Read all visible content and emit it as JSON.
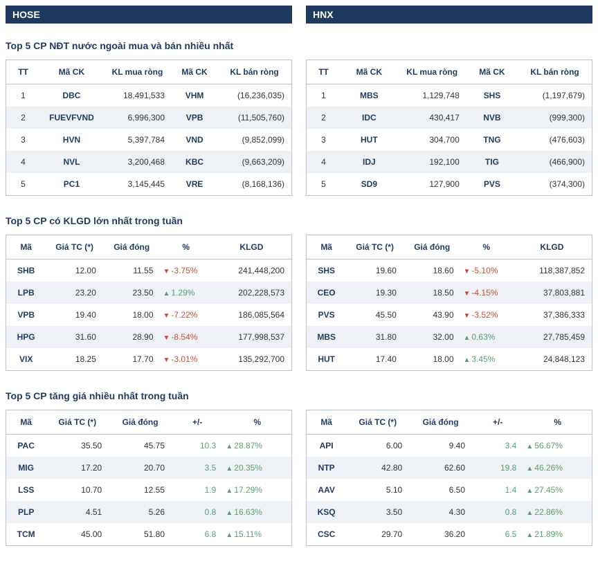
{
  "colors": {
    "header_bg": "#1f3a5f",
    "header_fg": "#ffffff",
    "border": "#b8c4d4",
    "row_alt": "#eef2f7",
    "navy": "#1f3a5f",
    "up": "#5a9e6f",
    "down": "#c84b3a"
  },
  "hose_label": "HOSE",
  "hnx_label": "HNX",
  "section1_title": "Top 5 CP NĐT nước ngoài mua và bán nhiều nhất",
  "section2_title": "Top 5 CP có KLGD lớn nhất trong tuần",
  "section3_title": "Top 5 CP tăng giá nhiều nhất trong tuần",
  "t1_headers": {
    "tt": "TT",
    "ma1": "Mã CK",
    "buy": "KL mua ròng",
    "ma2": "Mã CK",
    "sell": "KL bán ròng"
  },
  "t2_headers": {
    "ma": "Mã",
    "ref": "Giá TC (*)",
    "close": "Giá đóng",
    "pct": "%",
    "vol": "KLGD"
  },
  "t3_headers": {
    "ma": "Mã",
    "ref": "Giá TC (*)",
    "close": "Giá đóng",
    "chg": "+/-",
    "pct": "%"
  },
  "hose": {
    "foreign": [
      {
        "tt": "1",
        "buy_code": "DBC",
        "buy_vol": "18,491,533",
        "sell_code": "VHM",
        "sell_vol": "(16,236,035)"
      },
      {
        "tt": "2",
        "buy_code": "FUEVFVND",
        "buy_vol": "6,996,300",
        "sell_code": "VPB",
        "sell_vol": "(11,505,760)"
      },
      {
        "tt": "3",
        "buy_code": "HVN",
        "buy_vol": "5,397,784",
        "sell_code": "VND",
        "sell_vol": "(9,852,099)"
      },
      {
        "tt": "4",
        "buy_code": "NVL",
        "buy_vol": "3,200,468",
        "sell_code": "KBC",
        "sell_vol": "(9,663,209)"
      },
      {
        "tt": "5",
        "buy_code": "PC1",
        "buy_vol": "3,145,445",
        "sell_code": "VRE",
        "sell_vol": "(8,168,136)"
      }
    ],
    "volume": [
      {
        "code": "SHB",
        "ref": "12.00",
        "close": "11.55",
        "dir": "down",
        "pct": "-3.75%",
        "vol": "241,448,200"
      },
      {
        "code": "LPB",
        "ref": "23.20",
        "close": "23.50",
        "dir": "up",
        "pct": "1.29%",
        "vol": "202,228,573"
      },
      {
        "code": "VPB",
        "ref": "19.40",
        "close": "18.00",
        "dir": "down",
        "pct": "-7.22%",
        "vol": "186,085,564"
      },
      {
        "code": "HPG",
        "ref": "31.60",
        "close": "28.90",
        "dir": "down",
        "pct": "-8.54%",
        "vol": "177,998,537"
      },
      {
        "code": "VIX",
        "ref": "18.25",
        "close": "17.70",
        "dir": "down",
        "pct": "-3.01%",
        "vol": "135,292,700"
      }
    ],
    "gainers": [
      {
        "code": "PAC",
        "ref": "35.50",
        "close": "45.75",
        "chg": "10.3",
        "dir": "up",
        "pct": "28.87%"
      },
      {
        "code": "MIG",
        "ref": "17.20",
        "close": "20.70",
        "chg": "3.5",
        "dir": "up",
        "pct": "20.35%"
      },
      {
        "code": "LSS",
        "ref": "10.70",
        "close": "12.55",
        "chg": "1.9",
        "dir": "up",
        "pct": "17.29%"
      },
      {
        "code": "PLP",
        "ref": "4.51",
        "close": "5.26",
        "chg": "0.8",
        "dir": "up",
        "pct": "16.63%"
      },
      {
        "code": "TCM",
        "ref": "45.00",
        "close": "51.80",
        "chg": "6.8",
        "dir": "up",
        "pct": "15.11%"
      }
    ]
  },
  "hnx": {
    "foreign": [
      {
        "tt": "1",
        "buy_code": "MBS",
        "buy_vol": "1,129,748",
        "sell_code": "SHS",
        "sell_vol": "(1,197,679)"
      },
      {
        "tt": "2",
        "buy_code": "IDC",
        "buy_vol": "430,417",
        "sell_code": "NVB",
        "sell_vol": "(999,300)"
      },
      {
        "tt": "3",
        "buy_code": "HUT",
        "buy_vol": "304,700",
        "sell_code": "TNG",
        "sell_vol": "(476,603)"
      },
      {
        "tt": "4",
        "buy_code": "IDJ",
        "buy_vol": "192,100",
        "sell_code": "TIG",
        "sell_vol": "(466,900)"
      },
      {
        "tt": "5",
        "buy_code": "SD9",
        "buy_vol": "127,900",
        "sell_code": "PVS",
        "sell_vol": "(374,300)"
      }
    ],
    "volume": [
      {
        "code": "SHS",
        "ref": "19.60",
        "close": "18.60",
        "dir": "down",
        "pct": "-5.10%",
        "vol": "118,387,852"
      },
      {
        "code": "CEO",
        "ref": "19.30",
        "close": "18.50",
        "dir": "down",
        "pct": "-4.15%",
        "vol": "37,803,881"
      },
      {
        "code": "PVS",
        "ref": "45.50",
        "close": "43.90",
        "dir": "down",
        "pct": "-3.52%",
        "vol": "37,386,333"
      },
      {
        "code": "MBS",
        "ref": "31.80",
        "close": "32.00",
        "dir": "up",
        "pct": "0.63%",
        "vol": "27,785,459"
      },
      {
        "code": "HUT",
        "ref": "17.40",
        "close": "18.00",
        "dir": "up",
        "pct": "3.45%",
        "vol": "24,848,123"
      }
    ],
    "gainers": [
      {
        "code": "API",
        "ref": "6.00",
        "close": "9.40",
        "chg": "3.4",
        "dir": "up",
        "pct": "56.67%"
      },
      {
        "code": "NTP",
        "ref": "42.80",
        "close": "62.60",
        "chg": "19.8",
        "dir": "up",
        "pct": "46.26%"
      },
      {
        "code": "AAV",
        "ref": "5.10",
        "close": "6.50",
        "chg": "1.4",
        "dir": "up",
        "pct": "27.45%"
      },
      {
        "code": "KSQ",
        "ref": "3.50",
        "close": "4.30",
        "chg": "0.8",
        "dir": "up",
        "pct": "22.86%"
      },
      {
        "code": "CSC",
        "ref": "29.70",
        "close": "36.20",
        "chg": "6.5",
        "dir": "up",
        "pct": "21.89%"
      }
    ]
  }
}
